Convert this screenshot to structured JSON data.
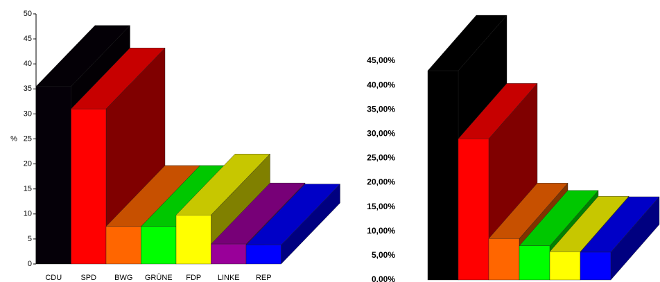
{
  "chart_data": [
    {
      "type": "bar",
      "y_label": "%",
      "categories": [
        "CDU",
        "SPD",
        "BWG",
        "GRÜNE",
        "FDP",
        "LINKE",
        "REP"
      ],
      "values": [
        35.5,
        31,
        7.5,
        7.5,
        9.8,
        4,
        3.8
      ],
      "colors": [
        "#050008",
        "#ff0000",
        "#ff6600",
        "#00ff00",
        "#ffff00",
        "#990099",
        "#0000ff"
      ],
      "ylim": [
        0,
        50
      ],
      "yticks": [
        0,
        5,
        10,
        15,
        20,
        25,
        30,
        35,
        40,
        45,
        50
      ]
    },
    {
      "type": "bar",
      "categories": [
        null,
        null,
        null,
        null,
        null,
        null
      ],
      "values": [
        43,
        29,
        8.5,
        7,
        5.8,
        5.7
      ],
      "colors": [
        "#000000",
        "#ff0000",
        "#ff6600",
        "#00ff00",
        "#ffff00",
        "#0000ff"
      ],
      "ylim": [
        0,
        45
      ],
      "yticks": [
        {
          "value": 0,
          "label": "0,00%"
        },
        {
          "value": 5,
          "label": "5,00%"
        },
        {
          "value": 10,
          "label": "10,00%"
        },
        {
          "value": 15,
          "label": "15,00%"
        },
        {
          "value": 20,
          "label": "20,00%"
        },
        {
          "value": 25,
          "label": "25,00%"
        },
        {
          "value": 30,
          "label": "30,00%"
        },
        {
          "value": 35,
          "label": "35,00%"
        },
        {
          "value": 40,
          "label": "40,00%"
        },
        {
          "value": 45,
          "label": "45,00%"
        }
      ]
    }
  ]
}
